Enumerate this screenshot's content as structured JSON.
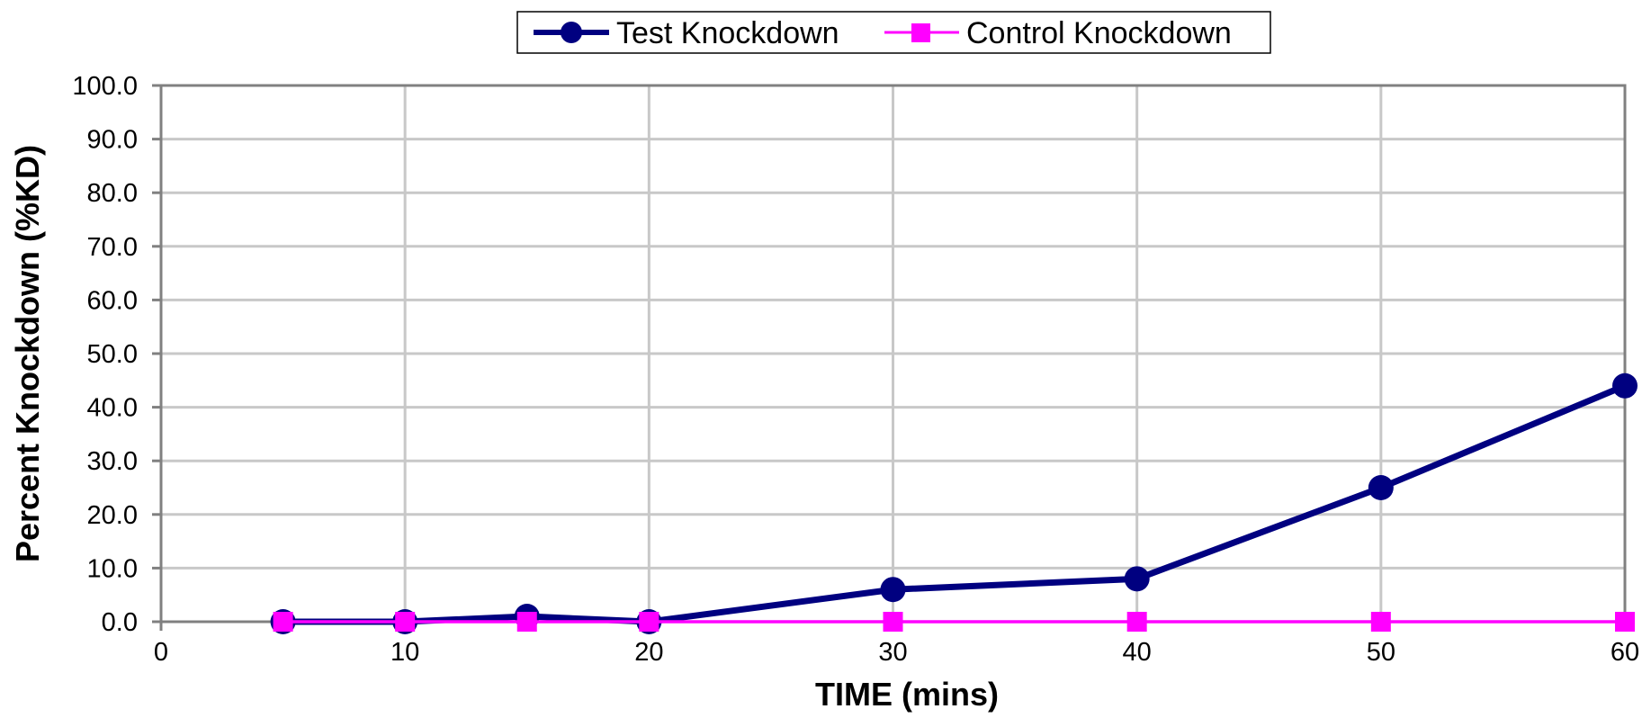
{
  "chart_data": {
    "type": "line",
    "title": "",
    "xlabel": "TIME (mins)",
    "ylabel": "Percent Knockdown (%KD)",
    "xlim": [
      0,
      60
    ],
    "ylim": [
      0,
      100
    ],
    "x_ticks": [
      0,
      10,
      20,
      30,
      40,
      50,
      60
    ],
    "y_ticks": [
      "0.0",
      "10.0",
      "20.0",
      "30.0",
      "40.0",
      "50.0",
      "60.0",
      "70.0",
      "80.0",
      "90.0",
      "100.0"
    ],
    "grid": true,
    "legend_position": "top-center",
    "x": [
      5,
      10,
      15,
      20,
      30,
      40,
      50,
      60
    ],
    "series": [
      {
        "name": "Test Knockdown",
        "color": "#000080",
        "marker": "circle",
        "values": [
          0,
          0,
          1,
          0,
          6,
          8,
          25,
          44
        ]
      },
      {
        "name": "Control Knockdown",
        "color": "#FF00FF",
        "marker": "square",
        "values": [
          0,
          0,
          0,
          0,
          0,
          0,
          0,
          0
        ]
      }
    ]
  }
}
